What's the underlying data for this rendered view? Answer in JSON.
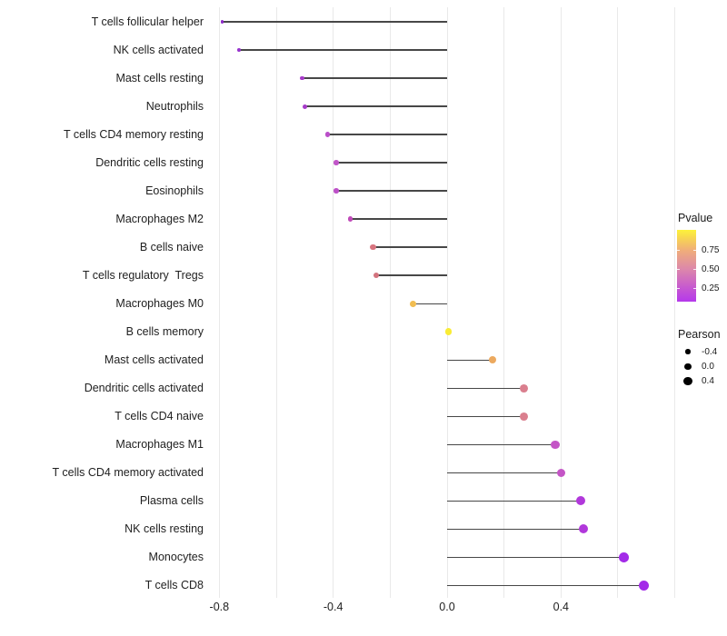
{
  "chart_data": {
    "type": "lollipop",
    "title": "",
    "xlabel": "",
    "ylabel": "",
    "x_tick_labels": [
      "-0.8",
      "-0.4",
      "0.0",
      "0.4"
    ],
    "x_tick_values": [
      -0.8,
      -0.4,
      0.0,
      0.4
    ],
    "x_gridline_values": [
      -0.8,
      -0.6,
      -0.4,
      -0.2,
      0.0,
      0.2,
      0.4,
      0.6,
      0.8
    ],
    "xlim": [
      -0.83,
      0.81
    ],
    "baseline": 0.0,
    "grid": "vertical-only",
    "legend_position": "right",
    "points": [
      {
        "label": "T cells follicular helper",
        "pearson": -0.79,
        "color": "#8d2ac8"
      },
      {
        "label": "NK cells activated",
        "pearson": -0.73,
        "color": "#9733cd"
      },
      {
        "label": "Mast cells resting",
        "pearson": -0.51,
        "color": "#a73ac9"
      },
      {
        "label": "Neutrophils",
        "pearson": -0.5,
        "color": "#a63bc9"
      },
      {
        "label": "T cells CD4 memory resting",
        "pearson": -0.42,
        "color": "#ba4fc9"
      },
      {
        "label": "Dendritic cells resting",
        "pearson": -0.39,
        "color": "#c156c8"
      },
      {
        "label": "Eosinophils",
        "pearson": -0.39,
        "color": "#bd51c8"
      },
      {
        "label": "Macrophages M2",
        "pearson": -0.34,
        "color": "#c04ab9"
      },
      {
        "label": "B cells naive",
        "pearson": -0.26,
        "color": "#d8747f"
      },
      {
        "label": "T cells regulatory  Tregs",
        "pearson": -0.25,
        "color": "#d3737e"
      },
      {
        "label": "Macrophages M0",
        "pearson": -0.12,
        "color": "#f1bd52"
      },
      {
        "label": "B cells memory",
        "pearson": 0.005,
        "color": "#f9ec35"
      },
      {
        "label": "Mast cells activated",
        "pearson": 0.16,
        "color": "#eca95f"
      },
      {
        "label": "Dendritic cells activated",
        "pearson": 0.27,
        "color": "#da7f8e"
      },
      {
        "label": "T cells CD4 naive",
        "pearson": 0.27,
        "color": "#da7f8e"
      },
      {
        "label": "Macrophages M1",
        "pearson": 0.38,
        "color": "#c455c6"
      },
      {
        "label": "T cells CD4 memory activated",
        "pearson": 0.4,
        "color": "#c455c6"
      },
      {
        "label": "Plasma cells",
        "pearson": 0.47,
        "color": "#b138db"
      },
      {
        "label": "NK cells resting",
        "pearson": 0.48,
        "color": "#b138db"
      },
      {
        "label": "Monocytes",
        "pearson": 0.62,
        "color": "#a32be8"
      },
      {
        "label": "T cells CD8",
        "pearson": 0.69,
        "color": "#a32be8"
      }
    ],
    "legends": {
      "pvalue": {
        "title": "Pvalue",
        "tick_labels": [
          "0.75",
          "0.50",
          "0.25"
        ],
        "tick_fractions_from_bottom": [
          0.718,
          0.449,
          0.179
        ],
        "gradient_stops": [
          {
            "frac": 0.0,
            "color": "#b538eb"
          },
          {
            "frac": 0.18,
            "color": "#c556d2"
          },
          {
            "frac": 0.45,
            "color": "#dc87ab"
          },
          {
            "frac": 0.72,
            "color": "#f0ae79"
          },
          {
            "frac": 0.9,
            "color": "#f8d94e"
          },
          {
            "frac": 1.0,
            "color": "#fdf23b"
          }
        ]
      },
      "pearson": {
        "title": "Pearson",
        "items": [
          {
            "label": "-0.4",
            "value": -0.4
          },
          {
            "label": "0.0",
            "value": 0.0
          },
          {
            "label": "0.4",
            "value": 0.4
          }
        ],
        "dot_color": "#000000"
      }
    },
    "colors": {
      "stick": "#474747",
      "gridline": "#e9e9e9",
      "axis_text": "#212121",
      "background": "#ffffff"
    }
  }
}
